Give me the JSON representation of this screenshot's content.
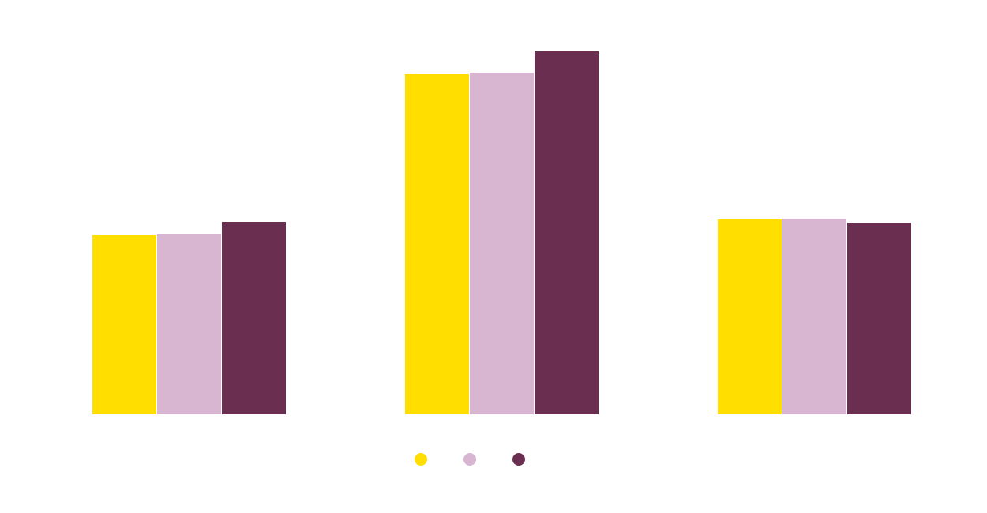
{
  "chart_data": {
    "type": "bar",
    "title": "",
    "xlabel": "",
    "ylabel": "",
    "categories": [
      "",
      "",
      ""
    ],
    "series": [
      {
        "color": "#FFDE00",
        "values": [
          227,
          431,
          247
        ]
      },
      {
        "color": "#D8B6D1",
        "values": [
          229,
          433,
          248
        ]
      },
      {
        "color": "#6A2E50",
        "values": [
          244,
          460,
          243
        ]
      }
    ],
    "ylim": [
      0,
      480
    ],
    "grid": false,
    "legend": {
      "placement": "bottom-center",
      "marker": "circle"
    }
  }
}
